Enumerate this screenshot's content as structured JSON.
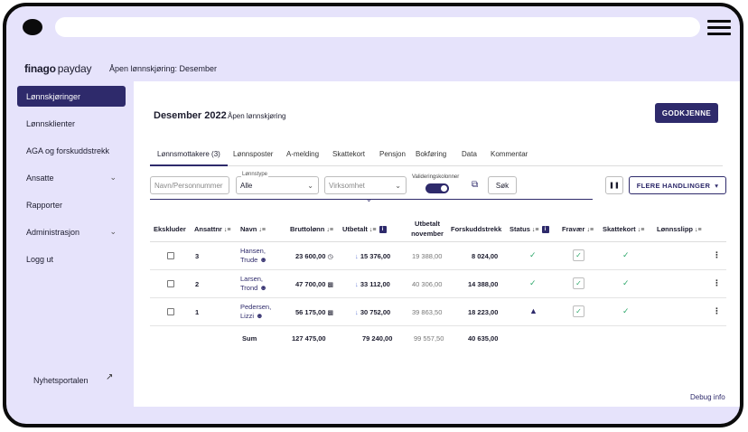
{
  "app": {
    "logo": "finago",
    "logo_suffix": "payday",
    "breadcrumb": "Åpen lønnskjøring: Desember"
  },
  "sidebar": {
    "items": [
      {
        "label": "Lønnskjøringer",
        "active": true
      },
      {
        "label": "Lønnsklienter"
      },
      {
        "label": "AGA og forskuddstrekk"
      },
      {
        "label": "Ansatte",
        "expandable": true
      },
      {
        "label": "Rapporter"
      },
      {
        "label": "Administrasjon",
        "expandable": true
      },
      {
        "label": "Logg ut"
      }
    ],
    "news": "Nyhetsportalen"
  },
  "page": {
    "title": "Desember 2022",
    "subtitle": "Åpen lønnskjøring",
    "approve_label": "GODKJENNE"
  },
  "tabs": [
    {
      "label": "Lønnsmottakere (3)",
      "active": true
    },
    {
      "label": "Lønnsposter"
    },
    {
      "label": "A-melding"
    },
    {
      "label": "Skattekort"
    },
    {
      "label": "Pensjon"
    },
    {
      "label": "Bokføring"
    },
    {
      "label": "Data"
    },
    {
      "label": "Kommentar"
    }
  ],
  "filters": {
    "search_placeholder": "Navn/Personnummer",
    "lonnstype_label": "Lønnstype",
    "lonnstype_value": "Alle",
    "virksomhet_placeholder": "Virksomhet",
    "validation_label": "Valideringskolonner",
    "search_button": "Søk",
    "more_actions": "FLERE HANDLINGER"
  },
  "table": {
    "headers": {
      "exclude": "Ekskluder",
      "empno": "Ansattnr",
      "name": "Navn",
      "gross": "Bruttolønn",
      "paid": "Utbetalt",
      "paid_nov_1": "Utbetalt",
      "paid_nov_2": "november",
      "tax": "Forskuddstrekk",
      "status": "Status",
      "absence": "Fravær",
      "taxcard": "Skattekort",
      "payslip": "Lønnsslipp"
    },
    "rows": [
      {
        "empno": "3",
        "name1": "Hansen,",
        "name2": "Trude",
        "gross": "23 600,00",
        "paid": "15 376,00",
        "paid_nov": "19 388,00",
        "tax": "8 024,00",
        "status": "ok"
      },
      {
        "empno": "2",
        "name1": "Larsen,",
        "name2": "Trond",
        "gross": "47 700,00",
        "paid": "33 112,00",
        "paid_nov": "40 306,00",
        "tax": "14 388,00",
        "status": "ok"
      },
      {
        "empno": "1",
        "name1": "Pedersen,",
        "name2": "Lizzi",
        "gross": "56 175,00",
        "paid": "30 752,00",
        "paid_nov": "39 863,50",
        "tax": "18 223,00",
        "status": "warning"
      }
    ],
    "sum": {
      "label": "Sum",
      "gross": "127 475,00",
      "paid": "79 240,00",
      "paid_nov": "99 557,50",
      "tax": "40 635,00"
    }
  },
  "debug": "Debug info"
}
